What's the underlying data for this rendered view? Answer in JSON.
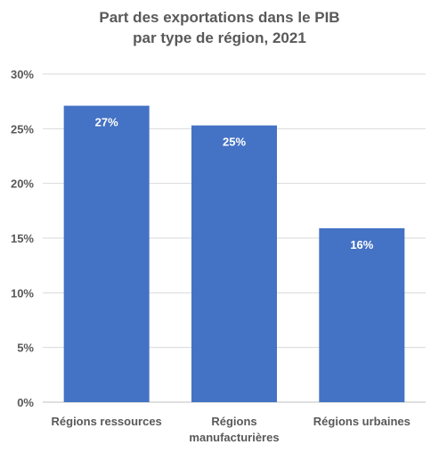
{
  "chart_data": {
    "type": "bar",
    "title_lines": [
      "Part des exportations dans le PIB",
      "par type de région, 2021"
    ],
    "categories": [
      [
        "Régions ressources"
      ],
      [
        "Régions",
        "manufacturières"
      ],
      [
        "Régions urbaines"
      ]
    ],
    "values": [
      27.1,
      25.3,
      15.9
    ],
    "data_labels": [
      "27%",
      "25%",
      "16%"
    ],
    "y_ticks": [
      {
        "value": 0,
        "label": "0%"
      },
      {
        "value": 5,
        "label": "5%"
      },
      {
        "value": 10,
        "label": "10%"
      },
      {
        "value": 15,
        "label": "15%"
      },
      {
        "value": 20,
        "label": "20%"
      },
      {
        "value": 25,
        "label": "25%"
      },
      {
        "value": 30,
        "label": "30%"
      }
    ],
    "ylim": [
      0,
      30
    ],
    "grid": true,
    "colors": {
      "bar": "#4472C4",
      "grid": "#D9D9D9",
      "text": "#595959"
    }
  }
}
